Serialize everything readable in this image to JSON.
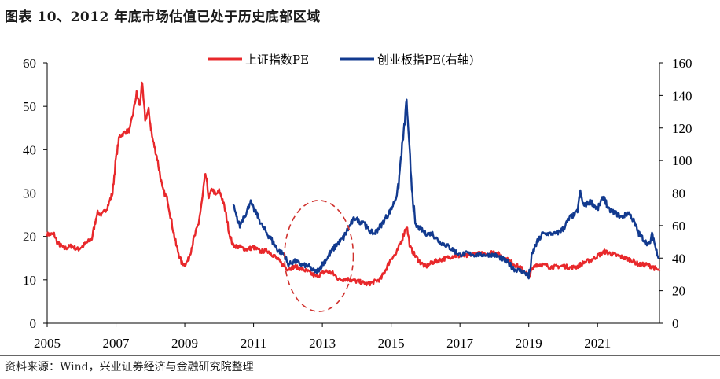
{
  "title": "图表 10、2012 年底市场估值已处于历史底部区域",
  "source": "资料来源：Wind，兴业证券经济与金融研究院整理",
  "colors": {
    "sh": "#e8282b",
    "cy": "#123a8f",
    "circle": "#d0312d"
  },
  "chart_data": {
    "type": "line",
    "title": "2012 年底市场估值已处于历史底部区域",
    "x_ticks": [
      "2005",
      "2007",
      "2009",
      "2011",
      "2013",
      "2015",
      "2017",
      "2019",
      "2021"
    ],
    "xlim": [
      2005,
      2022.8
    ],
    "y_left": {
      "ticks": [
        "0",
        "10",
        "20",
        "30",
        "40",
        "50",
        "60"
      ],
      "lim": [
        0,
        60
      ]
    },
    "y_right": {
      "ticks": [
        "0",
        "20",
        "40",
        "60",
        "80",
        "100",
        "120",
        "140",
        "160"
      ],
      "lim": [
        0,
        160
      ]
    },
    "annotation": {
      "type": "dashed-ellipse",
      "center_x": 2012.9,
      "center_y_left": 15.5,
      "radius_x_years": 1.0,
      "radius_y_left": 12.8
    },
    "series": [
      {
        "name": "上证指数PE",
        "axis": "left",
        "points": [
          [
            2005.0,
            20.5
          ],
          [
            2005.2,
            20.5
          ],
          [
            2005.3,
            18.5
          ],
          [
            2005.5,
            17.2
          ],
          [
            2005.7,
            17.8
          ],
          [
            2005.9,
            17.0
          ],
          [
            2006.1,
            18.2
          ],
          [
            2006.3,
            19.5
          ],
          [
            2006.45,
            25.5
          ],
          [
            2006.6,
            25.0
          ],
          [
            2006.75,
            26.8
          ],
          [
            2006.9,
            30.0
          ],
          [
            2007.0,
            38.0
          ],
          [
            2007.1,
            43.0
          ],
          [
            2007.25,
            44.0
          ],
          [
            2007.4,
            44.5
          ],
          [
            2007.5,
            48.5
          ],
          [
            2007.6,
            53.0
          ],
          [
            2007.7,
            50.0
          ],
          [
            2007.75,
            55.8
          ],
          [
            2007.85,
            47.0
          ],
          [
            2007.95,
            49.0
          ],
          [
            2008.05,
            43.0
          ],
          [
            2008.2,
            38.0
          ],
          [
            2008.35,
            31.0
          ],
          [
            2008.5,
            28.5
          ],
          [
            2008.6,
            24.0
          ],
          [
            2008.75,
            18.0
          ],
          [
            2008.9,
            14.0
          ],
          [
            2009.0,
            13.5
          ],
          [
            2009.1,
            14.5
          ],
          [
            2009.25,
            19.0
          ],
          [
            2009.4,
            23.0
          ],
          [
            2009.5,
            28.0
          ],
          [
            2009.6,
            34.5
          ],
          [
            2009.7,
            29.0
          ],
          [
            2009.8,
            31.0
          ],
          [
            2009.9,
            29.5
          ],
          [
            2010.0,
            30.5
          ],
          [
            2010.1,
            28.5
          ],
          [
            2010.2,
            25.0
          ],
          [
            2010.3,
            20.5
          ],
          [
            2010.4,
            18.0
          ],
          [
            2010.6,
            17.5
          ],
          [
            2010.8,
            17.0
          ],
          [
            2011.0,
            17.5
          ],
          [
            2011.2,
            16.5
          ],
          [
            2011.4,
            16.8
          ],
          [
            2011.6,
            15.5
          ],
          [
            2011.8,
            13.8
          ],
          [
            2012.0,
            12.5
          ],
          [
            2012.2,
            13.0
          ],
          [
            2012.4,
            12.5
          ],
          [
            2012.6,
            11.8
          ],
          [
            2012.8,
            10.8
          ],
          [
            2012.95,
            11.3
          ],
          [
            2013.1,
            12.0
          ],
          [
            2013.3,
            11.5
          ],
          [
            2013.5,
            10.0
          ],
          [
            2013.7,
            10.2
          ],
          [
            2013.9,
            9.8
          ],
          [
            2014.1,
            9.5
          ],
          [
            2014.3,
            9.0
          ],
          [
            2014.5,
            9.5
          ],
          [
            2014.7,
            10.2
          ],
          [
            2014.85,
            12.5
          ],
          [
            2015.0,
            15.0
          ],
          [
            2015.15,
            16.0
          ],
          [
            2015.3,
            19.0
          ],
          [
            2015.45,
            22.5
          ],
          [
            2015.55,
            17.5
          ],
          [
            2015.7,
            15.5
          ],
          [
            2015.85,
            14.0
          ],
          [
            2016.0,
            13.0
          ],
          [
            2016.2,
            14.0
          ],
          [
            2016.4,
            14.5
          ],
          [
            2016.6,
            15.0
          ],
          [
            2016.8,
            15.5
          ],
          [
            2017.0,
            15.5
          ],
          [
            2017.2,
            15.5
          ],
          [
            2017.4,
            16.0
          ],
          [
            2017.6,
            16.0
          ],
          [
            2017.8,
            16.0
          ],
          [
            2018.0,
            16.5
          ],
          [
            2018.2,
            15.5
          ],
          [
            2018.4,
            14.5
          ],
          [
            2018.6,
            13.5
          ],
          [
            2018.8,
            12.5
          ],
          [
            2019.0,
            11.0
          ],
          [
            2019.2,
            13.5
          ],
          [
            2019.4,
            13.5
          ],
          [
            2019.6,
            13.0
          ],
          [
            2019.8,
            13.0
          ],
          [
            2020.0,
            13.2
          ],
          [
            2020.2,
            12.8
          ],
          [
            2020.4,
            13.0
          ],
          [
            2020.6,
            14.0
          ],
          [
            2020.8,
            14.5
          ],
          [
            2021.0,
            15.5
          ],
          [
            2021.2,
            16.5
          ],
          [
            2021.4,
            16.0
          ],
          [
            2021.6,
            15.5
          ],
          [
            2021.8,
            15.0
          ],
          [
            2022.0,
            14.5
          ],
          [
            2022.2,
            13.5
          ],
          [
            2022.4,
            13.5
          ],
          [
            2022.6,
            13.0
          ],
          [
            2022.8,
            12.0
          ]
        ]
      },
      {
        "name": "创业板指PE(右轴)",
        "axis": "right",
        "points": [
          [
            2010.4,
            73
          ],
          [
            2010.5,
            65
          ],
          [
            2010.6,
            60
          ],
          [
            2010.7,
            65
          ],
          [
            2010.8,
            68
          ],
          [
            2010.9,
            75
          ],
          [
            2011.0,
            70
          ],
          [
            2011.1,
            67
          ],
          [
            2011.2,
            62
          ],
          [
            2011.3,
            58
          ],
          [
            2011.5,
            52
          ],
          [
            2011.7,
            45
          ],
          [
            2011.9,
            42
          ],
          [
            2012.0,
            36
          ],
          [
            2012.2,
            38
          ],
          [
            2012.4,
            36
          ],
          [
            2012.6,
            35
          ],
          [
            2012.75,
            32
          ],
          [
            2012.85,
            32
          ],
          [
            2013.0,
            36
          ],
          [
            2013.2,
            42
          ],
          [
            2013.4,
            48
          ],
          [
            2013.6,
            52
          ],
          [
            2013.8,
            60
          ],
          [
            2013.95,
            65
          ],
          [
            2014.1,
            62
          ],
          [
            2014.2,
            63
          ],
          [
            2014.3,
            58
          ],
          [
            2014.5,
            55
          ],
          [
            2014.7,
            60
          ],
          [
            2014.85,
            65
          ],
          [
            2015.0,
            70
          ],
          [
            2015.1,
            75
          ],
          [
            2015.2,
            82
          ],
          [
            2015.3,
            105
          ],
          [
            2015.38,
            120
          ],
          [
            2015.45,
            138
          ],
          [
            2015.5,
            115
          ],
          [
            2015.6,
            85
          ],
          [
            2015.7,
            60
          ],
          [
            2015.85,
            58
          ],
          [
            2016.0,
            55
          ],
          [
            2016.2,
            55
          ],
          [
            2016.4,
            50
          ],
          [
            2016.6,
            48
          ],
          [
            2016.8,
            45
          ],
          [
            2017.0,
            42
          ],
          [
            2017.2,
            43
          ],
          [
            2017.4,
            42
          ],
          [
            2017.6,
            42
          ],
          [
            2017.8,
            42
          ],
          [
            2018.0,
            42
          ],
          [
            2018.2,
            40
          ],
          [
            2018.4,
            37
          ],
          [
            2018.6,
            33
          ],
          [
            2018.8,
            32
          ],
          [
            2018.95,
            30
          ],
          [
            2019.0,
            28
          ],
          [
            2019.1,
            42
          ],
          [
            2019.2,
            48
          ],
          [
            2019.4,
            55
          ],
          [
            2019.6,
            55
          ],
          [
            2019.8,
            55
          ],
          [
            2020.0,
            58
          ],
          [
            2020.2,
            65
          ],
          [
            2020.4,
            68
          ],
          [
            2020.5,
            80
          ],
          [
            2020.6,
            72
          ],
          [
            2020.8,
            75
          ],
          [
            2021.0,
            70
          ],
          [
            2021.1,
            75
          ],
          [
            2021.2,
            78
          ],
          [
            2021.3,
            70
          ],
          [
            2021.5,
            68
          ],
          [
            2021.7,
            65
          ],
          [
            2021.9,
            68
          ],
          [
            2022.0,
            65
          ],
          [
            2022.2,
            55
          ],
          [
            2022.4,
            50
          ],
          [
            2022.5,
            48
          ],
          [
            2022.6,
            55
          ],
          [
            2022.7,
            45
          ],
          [
            2022.8,
            40
          ]
        ]
      }
    ]
  }
}
